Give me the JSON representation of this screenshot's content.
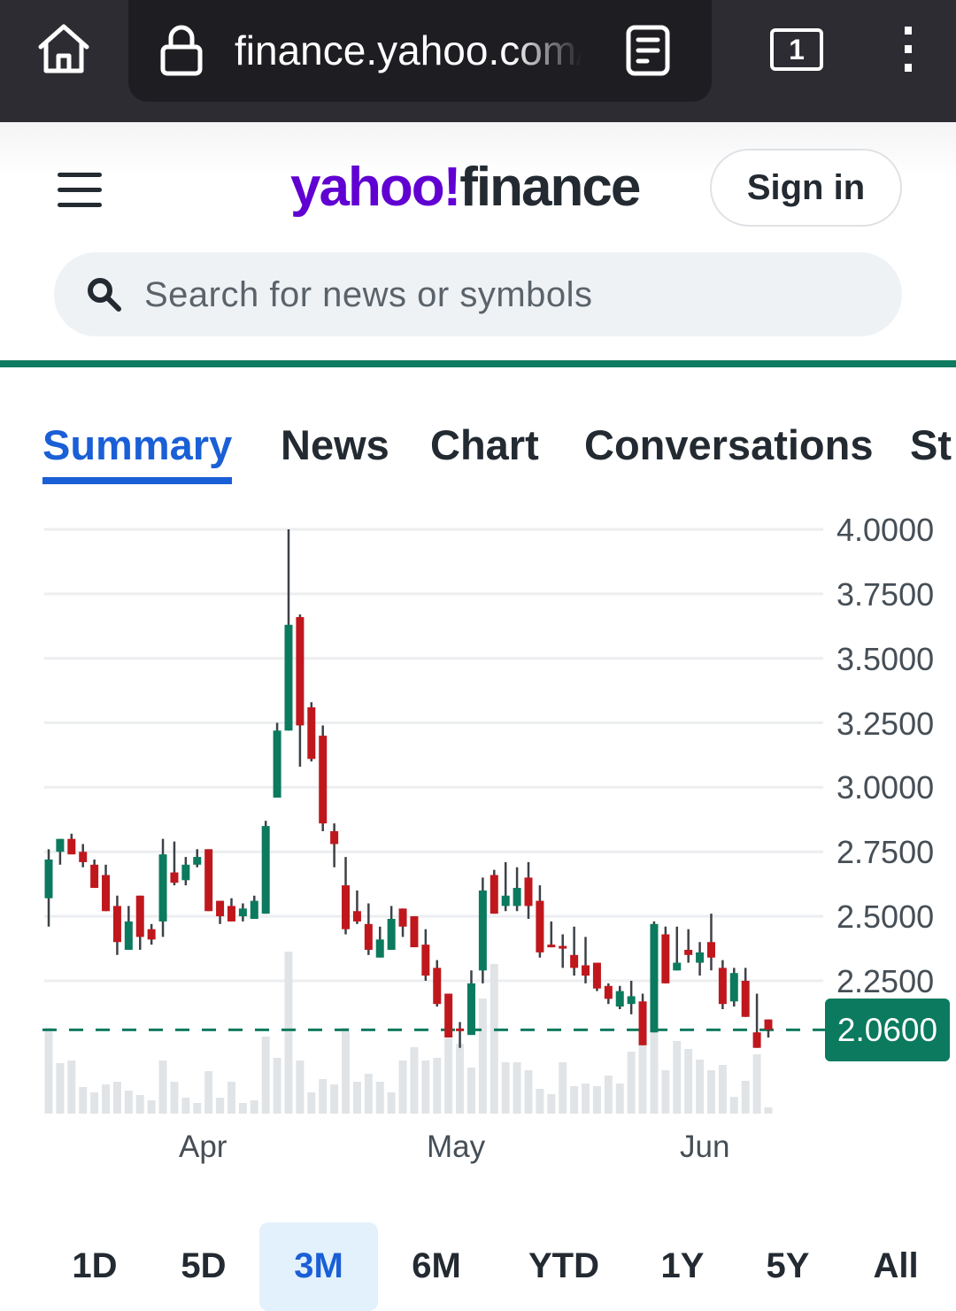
{
  "browser": {
    "url": "finance.yahoo.com/",
    "tab_count": "1",
    "icons": [
      "home-icon",
      "lock-icon",
      "reader-mode-icon",
      "tabs-icon",
      "more-vert-icon"
    ]
  },
  "header": {
    "logo_yahoo": "yahoo!",
    "logo_finance": "finance",
    "sign_in": "Sign in",
    "search_placeholder": "Search for news or symbols"
  },
  "tabs": [
    {
      "label": "Summary",
      "active": true
    },
    {
      "label": "News"
    },
    {
      "label": "Chart"
    },
    {
      "label": "Conversations"
    },
    {
      "label": "St"
    }
  ],
  "colors": {
    "brand_purple": "#6001d2",
    "accent_blue": "#1a5fd6",
    "up": "#0b7a5e",
    "down": "#c0171d",
    "volume": "#e1e4e7"
  },
  "chart_data": {
    "type": "candlestick",
    "ylim": [
      2.0,
      4.0
    ],
    "yticks": [
      "4.0000",
      "3.7500",
      "3.5000",
      "3.2500",
      "3.0000",
      "2.7500",
      "2.5000",
      "2.2500"
    ],
    "ytick_values": [
      4.0,
      3.75,
      3.5,
      3.25,
      3.0,
      2.75,
      2.5,
      2.25
    ],
    "xticks": [
      {
        "label": "Apr",
        "index": 14
      },
      {
        "label": "May",
        "index": 36
      },
      {
        "label": "Jun",
        "index": 58
      }
    ],
    "last_price": "2.0600",
    "last_price_value": 2.06,
    "grid": true,
    "ohlc": [
      [
        2.57,
        2.76,
        2.46,
        2.72
      ],
      [
        2.75,
        2.8,
        2.7,
        2.8
      ],
      [
        2.8,
        2.82,
        2.74,
        2.74
      ],
      [
        2.75,
        2.78,
        2.69,
        2.71
      ],
      [
        2.7,
        2.72,
        2.61,
        2.61
      ],
      [
        2.66,
        2.7,
        2.52,
        2.52
      ],
      [
        2.54,
        2.58,
        2.35,
        2.4
      ],
      [
        2.37,
        2.54,
        2.37,
        2.48
      ],
      [
        2.58,
        2.58,
        2.37,
        2.42
      ],
      [
        2.45,
        2.47,
        2.39,
        2.41
      ],
      [
        2.48,
        2.8,
        2.42,
        2.74
      ],
      [
        2.67,
        2.79,
        2.62,
        2.63
      ],
      [
        2.64,
        2.73,
        2.62,
        2.7
      ],
      [
        2.7,
        2.76,
        2.69,
        2.73
      ],
      [
        2.76,
        2.76,
        2.52,
        2.52
      ],
      [
        2.56,
        2.56,
        2.47,
        2.5
      ],
      [
        2.54,
        2.57,
        2.48,
        2.48
      ],
      [
        2.5,
        2.55,
        2.48,
        2.53
      ],
      [
        2.49,
        2.58,
        2.49,
        2.56
      ],
      [
        2.51,
        2.87,
        2.51,
        2.85
      ],
      [
        2.96,
        3.25,
        2.96,
        3.22
      ],
      [
        3.22,
        4.0,
        3.22,
        3.63
      ],
      [
        3.66,
        3.67,
        3.08,
        3.24
      ],
      [
        3.31,
        3.33,
        3.1,
        3.11
      ],
      [
        3.2,
        3.24,
        2.83,
        2.86
      ],
      [
        2.83,
        2.86,
        2.69,
        2.78
      ],
      [
        2.62,
        2.73,
        2.43,
        2.45
      ],
      [
        2.52,
        2.6,
        2.47,
        2.48
      ],
      [
        2.47,
        2.55,
        2.35,
        2.37
      ],
      [
        2.34,
        2.46,
        2.34,
        2.41
      ],
      [
        2.37,
        2.54,
        2.37,
        2.49
      ],
      [
        2.53,
        2.53,
        2.42,
        2.46
      ],
      [
        2.5,
        2.5,
        2.38,
        2.38
      ],
      [
        2.39,
        2.45,
        2.25,
        2.27
      ],
      [
        2.3,
        2.33,
        2.15,
        2.16
      ],
      [
        2.2,
        2.2,
        2.03,
        2.03
      ],
      [
        2.065,
        2.09,
        1.99,
        2.06
      ],
      [
        2.04,
        2.29,
        2.04,
        2.24
      ],
      [
        2.29,
        2.65,
        2.24,
        2.6
      ],
      [
        2.66,
        2.68,
        2.51,
        2.51
      ],
      [
        2.54,
        2.71,
        2.52,
        2.58
      ],
      [
        2.54,
        2.69,
        2.52,
        2.61
      ],
      [
        2.65,
        2.71,
        2.49,
        2.54
      ],
      [
        2.56,
        2.62,
        2.34,
        2.36
      ],
      [
        2.39,
        2.48,
        2.38,
        2.385
      ],
      [
        2.385,
        2.43,
        2.3,
        2.38
      ],
      [
        2.35,
        2.46,
        2.27,
        2.3
      ],
      [
        2.31,
        2.42,
        2.24,
        2.27
      ],
      [
        2.32,
        2.32,
        2.21,
        2.22
      ],
      [
        2.23,
        2.24,
        2.16,
        2.18
      ],
      [
        2.15,
        2.23,
        2.14,
        2.21
      ],
      [
        2.16,
        2.25,
        2.12,
        2.19
      ],
      [
        2.17,
        2.2,
        2.0,
        2.0
      ],
      [
        2.05,
        2.48,
        2.05,
        2.47
      ],
      [
        2.43,
        2.46,
        2.24,
        2.24
      ],
      [
        2.29,
        2.46,
        2.29,
        2.32
      ],
      [
        2.37,
        2.45,
        2.32,
        2.35
      ],
      [
        2.32,
        2.4,
        2.27,
        2.36
      ],
      [
        2.4,
        2.51,
        2.29,
        2.34
      ],
      [
        2.3,
        2.33,
        2.14,
        2.16
      ],
      [
        2.17,
        2.3,
        2.15,
        2.28
      ],
      [
        2.25,
        2.3,
        2.11,
        2.11
      ],
      [
        2.05,
        2.2,
        1.99,
        1.99
      ],
      [
        2.1,
        2.1,
        2.03,
        2.06
      ]
    ],
    "ohlc_fields": [
      "open",
      "high",
      "low",
      "close"
    ],
    "volume_relative": [
      97,
      57,
      60,
      30,
      24,
      33,
      36,
      26,
      21,
      15,
      60,
      36,
      18,
      12,
      48,
      18,
      36,
      12,
      15,
      87,
      63,
      183,
      60,
      24,
      39,
      33,
      97,
      36,
      45,
      36,
      24,
      60,
      75,
      60,
      63,
      85,
      79,
      52,
      130,
      169,
      58,
      58,
      49,
      28,
      22,
      58,
      31,
      34,
      31,
      43,
      34,
      70,
      85,
      132,
      49,
      82,
      73,
      61,
      49,
      55,
      19,
      37,
      67,
      7
    ]
  },
  "ranges": [
    {
      "label": "1D"
    },
    {
      "label": "5D"
    },
    {
      "label": "3M",
      "active": true
    },
    {
      "label": "6M"
    },
    {
      "label": "YTD"
    },
    {
      "label": "1Y"
    },
    {
      "label": "5Y"
    },
    {
      "label": "All"
    }
  ]
}
